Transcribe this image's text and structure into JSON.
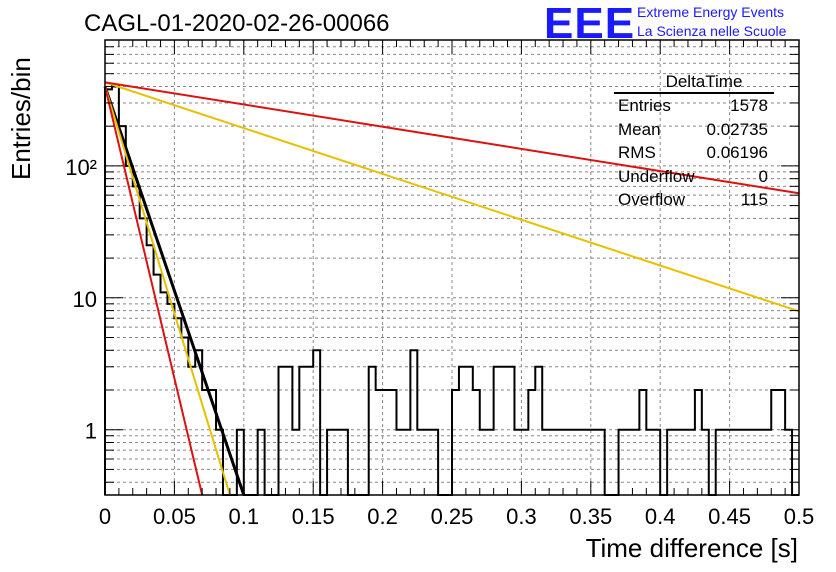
{
  "header": {
    "title": "CAGL-01-2020-02-26-00066",
    "logo_text": "EEE",
    "org_line1": "Extreme Energy Events",
    "org_line2": "La Scienza nelle Scuole"
  },
  "stats_box": {
    "title": "DeltaTime",
    "rows": [
      {
        "label": "Entries",
        "value": "1578"
      },
      {
        "label": "Mean",
        "value": "0.02735"
      },
      {
        "label": "RMS",
        "value": "0.06196"
      },
      {
        "label": "Underflow",
        "value": "0"
      },
      {
        "label": "Overflow",
        "value": "115"
      }
    ]
  },
  "chart_data": {
    "type": "line",
    "title": "CAGL-01-2020-02-26-00066",
    "xlabel": "Time difference [s]",
    "ylabel": "Entries/bin",
    "xlim": [
      0,
      0.5
    ],
    "ylim": [
      0.32,
      900
    ],
    "yscale": "log",
    "grid": true,
    "x_ticks": [
      "0",
      "0.05",
      "0.1",
      "0.15",
      "0.2",
      "0.25",
      "0.3",
      "0.35",
      "0.4",
      "0.45",
      "0.5"
    ],
    "y_ticks": [
      "1",
      "10",
      "10²"
    ],
    "histogram": {
      "bin_width": 0.005,
      "counts": [
        380,
        400,
        200,
        100,
        70,
        40,
        25,
        15,
        11,
        9,
        7,
        5,
        3,
        4,
        2,
        2,
        1,
        0,
        0,
        1,
        0,
        0,
        1,
        0,
        0,
        3,
        3,
        1,
        3,
        3,
        4,
        0,
        1,
        1,
        1,
        0,
        0,
        0,
        3,
        2,
        2,
        2,
        1,
        1,
        4,
        1,
        1,
        1,
        0,
        0,
        2,
        3,
        3,
        2,
        1,
        1,
        3,
        3,
        3,
        1,
        1,
        2,
        3,
        1,
        1,
        1,
        1,
        1,
        1,
        1,
        1,
        1,
        0,
        0,
        1,
        1,
        1,
        2,
        1,
        1,
        0,
        1,
        1,
        1,
        1,
        2,
        1,
        0,
        1,
        1,
        1,
        1,
        1,
        1,
        1,
        1,
        2,
        2,
        1,
        0,
        0
      ]
    },
    "fits": [
      {
        "color": "#000000",
        "points": [
          [
            0,
            400
          ],
          [
            0.1,
            0.32
          ]
        ]
      },
      {
        "color": "#e8c000",
        "points": [
          [
            0,
            400
          ],
          [
            0.09,
            0.32
          ]
        ]
      },
      {
        "color": "#dd1111",
        "points": [
          [
            0,
            400
          ],
          [
            0.07,
            0.32
          ]
        ]
      },
      {
        "color": "#e8c000",
        "points": [
          [
            0,
            430
          ],
          [
            0.5,
            7.9
          ]
        ]
      },
      {
        "color": "#dd1111",
        "points": [
          [
            0,
            430
          ],
          [
            0.5,
            62
          ]
        ]
      }
    ]
  }
}
